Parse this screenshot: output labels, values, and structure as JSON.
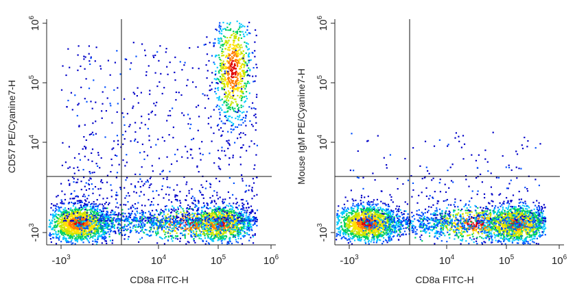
{
  "chart_data": [
    {
      "type": "scatter",
      "subtype": "flow-cytometry-density-dot-plot",
      "xlabel": "CD8a FITC-H",
      "ylabel": "CD57 PE/Cyanine7-H",
      "x_scale": "biexponential",
      "y_scale": "biexponential",
      "xticks": [
        {
          "value": -1000,
          "label": "-10",
          "exp": "3"
        },
        {
          "value": 10000,
          "label": "10",
          "exp": "4"
        },
        {
          "value": 100000,
          "label": "10",
          "exp": "5"
        },
        {
          "value": 1000000,
          "label": "10",
          "exp": "6"
        }
      ],
      "yticks": [
        {
          "value": -1000,
          "label": "-10",
          "exp": "3"
        },
        {
          "value": 10000,
          "label": "10",
          "exp": "4"
        },
        {
          "value": 100000,
          "label": "10",
          "exp": "5"
        },
        {
          "value": 1000000,
          "label": "10",
          "exp": "6"
        }
      ],
      "quadrant_gate": {
        "x": 2500,
        "y": 2500
      },
      "populations": [
        {
          "x": 0,
          "y": 0,
          "weight": 1.0
        },
        {
          "x": 110000,
          "y": 0,
          "weight": 0.7
        },
        {
          "x": 180000,
          "y": 160000,
          "weight": 0.55
        },
        {
          "x": 30000,
          "y": 0,
          "weight": 0.25
        }
      ],
      "grid": false
    },
    {
      "type": "scatter",
      "subtype": "flow-cytometry-density-dot-plot",
      "xlabel": "CD8a FITC-H",
      "ylabel": "Mouse IgM PE/Cyanine7-H",
      "x_scale": "biexponential",
      "y_scale": "biexponential",
      "xticks": [
        {
          "value": -1000,
          "label": "-10",
          "exp": "3"
        },
        {
          "value": 10000,
          "label": "10",
          "exp": "4"
        },
        {
          "value": 100000,
          "label": "10",
          "exp": "5"
        },
        {
          "value": 1000000,
          "label": "10",
          "exp": "6"
        }
      ],
      "yticks": [
        {
          "value": -1000,
          "label": "-10",
          "exp": "3"
        },
        {
          "value": 10000,
          "label": "10",
          "exp": "4"
        },
        {
          "value": 100000,
          "label": "10",
          "exp": "5"
        },
        {
          "value": 1000000,
          "label": "10",
          "exp": "6"
        }
      ],
      "quadrant_gate": {
        "x": 2500,
        "y": 2500
      },
      "populations": [
        {
          "x": 0,
          "y": 0,
          "weight": 1.0
        },
        {
          "x": 150000,
          "y": 0,
          "weight": 0.9
        },
        {
          "x": 30000,
          "y": 0,
          "weight": 0.35
        }
      ],
      "grid": false
    }
  ],
  "colors": {
    "density_scale": [
      "#0000c8",
      "#0050ff",
      "#00c8ff",
      "#00d060",
      "#c8e600",
      "#ffe000",
      "#ff7a00",
      "#e00000"
    ],
    "axis": "#222222",
    "gate_line": "#111111"
  }
}
